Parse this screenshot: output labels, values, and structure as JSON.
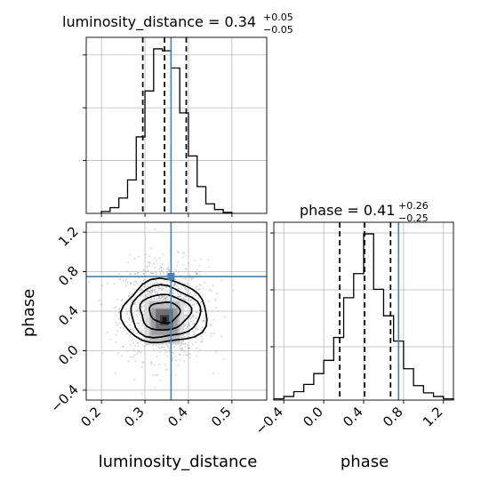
{
  "chart_data": {
    "type": "corner",
    "parameters": [
      "luminosity_distance",
      "phase"
    ],
    "truths": {
      "luminosity_distance": 0.36,
      "phase": 0.75
    },
    "marginals": {
      "luminosity_distance": {
        "title": "luminosity_distance = 0.34",
        "err_plus": "+0.05",
        "err_minus": "−0.05",
        "quantiles": [
          0.295,
          0.345,
          0.395
        ],
        "bin_edges": [
          0.2,
          0.22,
          0.24,
          0.26,
          0.28,
          0.3,
          0.32,
          0.34,
          0.36,
          0.38,
          0.4,
          0.42,
          0.44,
          0.46,
          0.48,
          0.5
        ],
        "counts": [
          2,
          6,
          16,
          35,
          80,
          128,
          172,
          170,
          152,
          105,
          60,
          28,
          10,
          4,
          1
        ],
        "xlim": [
          0.165,
          0.58
        ],
        "xticks": [
          "0.2",
          "0.3",
          "0.4",
          "0.5"
        ]
      },
      "phase": {
        "title": "phase = 0.41",
        "err_plus": "+0.26",
        "err_minus": "−0.25",
        "quantiles": [
          0.16,
          0.41,
          0.67
        ],
        "bin_edges": [
          -0.5,
          -0.4,
          -0.3,
          -0.2,
          -0.1,
          0.0,
          0.1,
          0.2,
          0.3,
          0.4,
          0.5,
          0.6,
          0.7,
          0.8,
          0.9,
          1.0,
          1.1,
          1.2,
          1.3
        ],
        "counts": [
          1,
          3,
          7,
          13,
          22,
          33,
          52,
          85,
          105,
          138,
          92,
          70,
          49,
          26,
          12,
          6,
          3,
          1
        ],
        "xlim": [
          -0.5,
          1.3
        ],
        "xticks": [
          "−0.4",
          "0.0",
          "0.4",
          "0.8",
          "1.2"
        ]
      }
    },
    "joint": {
      "xlim": [
        0.165,
        0.58
      ],
      "ylim": [
        -0.5,
        1.3
      ],
      "xticks": [
        "0.2",
        "0.3",
        "0.4",
        "0.5"
      ],
      "yticks": [
        "−0.4",
        "0.0",
        "0.4",
        "0.8",
        "1.2"
      ],
      "xlabel": "luminosity_distance",
      "ylabel": "phase"
    },
    "grid": true
  },
  "colors": {
    "truth": "#4682b4",
    "hist": "#000000",
    "grid": "#b0b0b0"
  }
}
